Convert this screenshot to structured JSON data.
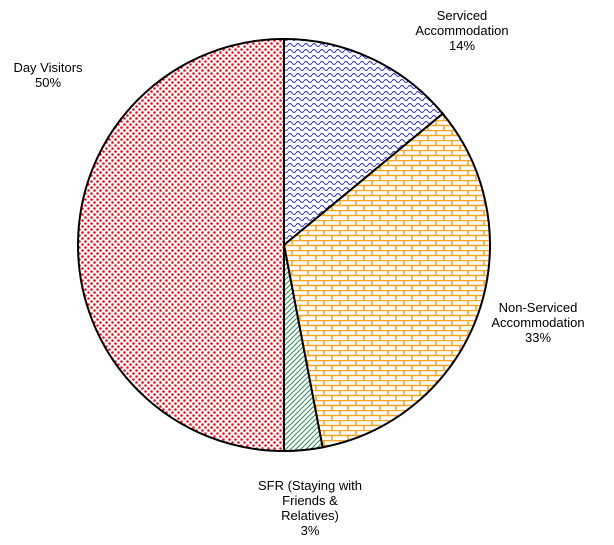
{
  "chart_data": {
    "type": "pie",
    "categories": [
      "Serviced Accommodation",
      "Non-Serviced Accommodation",
      "SFR (Staying with Friends & Relatives)",
      "Day Visitors"
    ],
    "values": [
      14,
      33,
      3,
      50
    ],
    "value_labels": [
      "14%",
      "33%",
      "3%",
      "50%"
    ],
    "colors": [
      "#2f2fd0",
      "#f5a623",
      "#2e8b57",
      "#e8101a"
    ]
  }
}
